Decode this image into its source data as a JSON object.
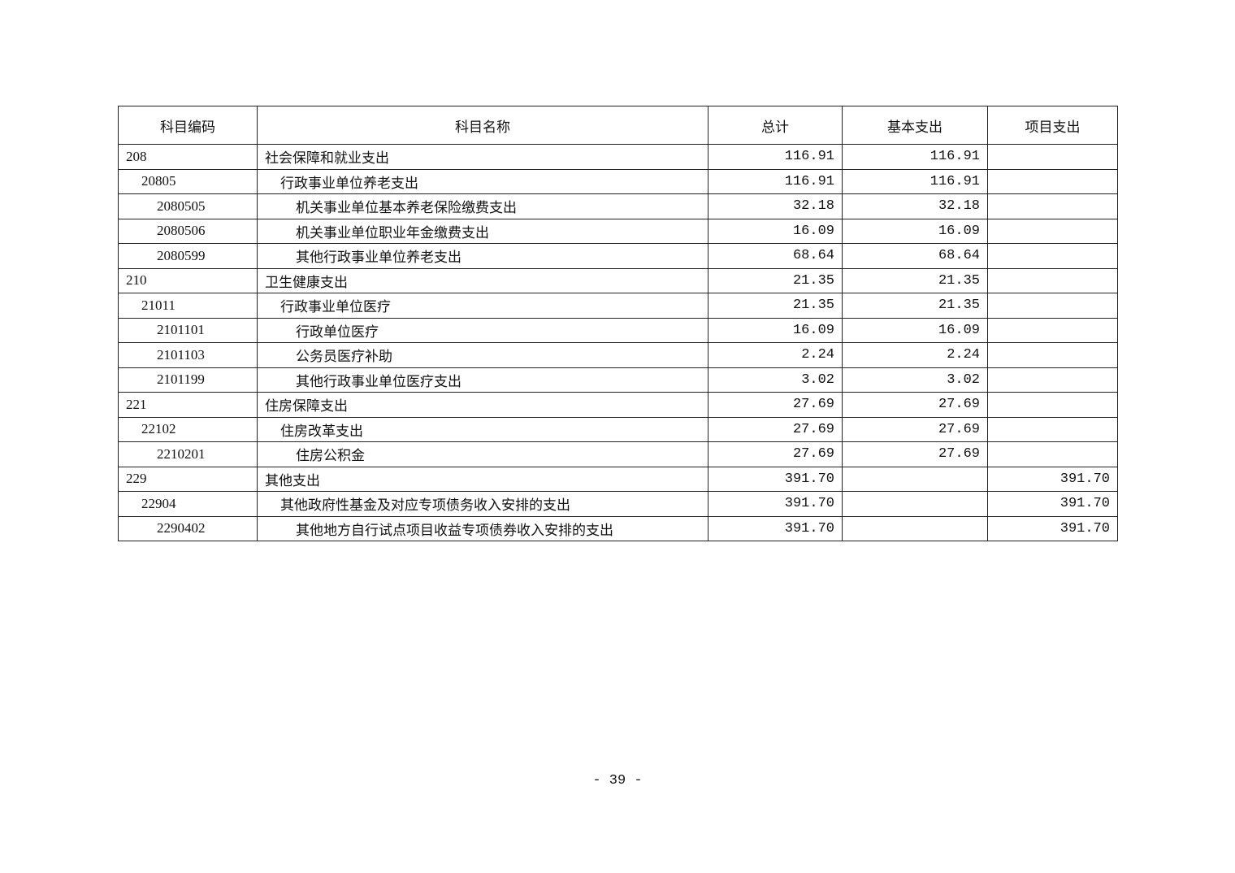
{
  "table": {
    "headers": [
      "科目编码",
      "科目名称",
      "总计",
      "基本支出",
      "项目支出"
    ],
    "rows": [
      {
        "level": 1,
        "code": "208",
        "name": "社会保障和就业支出",
        "total": "116.91",
        "basic": "116.91",
        "project": ""
      },
      {
        "level": 2,
        "code": "20805",
        "name": "行政事业单位养老支出",
        "total": "116.91",
        "basic": "116.91",
        "project": ""
      },
      {
        "level": 3,
        "code": "2080505",
        "name": "机关事业单位基本养老保险缴费支出",
        "total": "32.18",
        "basic": "32.18",
        "project": ""
      },
      {
        "level": 3,
        "code": "2080506",
        "name": "机关事业单位职业年金缴费支出",
        "total": "16.09",
        "basic": "16.09",
        "project": ""
      },
      {
        "level": 3,
        "code": "2080599",
        "name": "其他行政事业单位养老支出",
        "total": "68.64",
        "basic": "68.64",
        "project": ""
      },
      {
        "level": 1,
        "code": "210",
        "name": "卫生健康支出",
        "total": "21.35",
        "basic": "21.35",
        "project": ""
      },
      {
        "level": 2,
        "code": "21011",
        "name": "行政事业单位医疗",
        "total": "21.35",
        "basic": "21.35",
        "project": ""
      },
      {
        "level": 3,
        "code": "2101101",
        "name": "行政单位医疗",
        "total": "16.09",
        "basic": "16.09",
        "project": ""
      },
      {
        "level": 3,
        "code": "2101103",
        "name": "公务员医疗补助",
        "total": "2.24",
        "basic": "2.24",
        "project": ""
      },
      {
        "level": 3,
        "code": "2101199",
        "name": "其他行政事业单位医疗支出",
        "total": "3.02",
        "basic": "3.02",
        "project": ""
      },
      {
        "level": 1,
        "code": "221",
        "name": "住房保障支出",
        "total": "27.69",
        "basic": "27.69",
        "project": ""
      },
      {
        "level": 2,
        "code": "22102",
        "name": "住房改革支出",
        "total": "27.69",
        "basic": "27.69",
        "project": ""
      },
      {
        "level": 3,
        "code": "2210201",
        "name": "住房公积金",
        "total": "27.69",
        "basic": "27.69",
        "project": ""
      },
      {
        "level": 1,
        "code": "229",
        "name": "其他支出",
        "total": "391.70",
        "basic": "",
        "project": "391.70"
      },
      {
        "level": 2,
        "code": "22904",
        "name": "其他政府性基金及对应专项债务收入安排的支出",
        "total": "391.70",
        "basic": "",
        "project": "391.70"
      },
      {
        "level": 3,
        "code": "2290402",
        "name": "其他地方自行试点项目收益专项债券收入安排的支出",
        "total": "391.70",
        "basic": "",
        "project": "391.70"
      }
    ]
  },
  "page_number": "- 39 -"
}
